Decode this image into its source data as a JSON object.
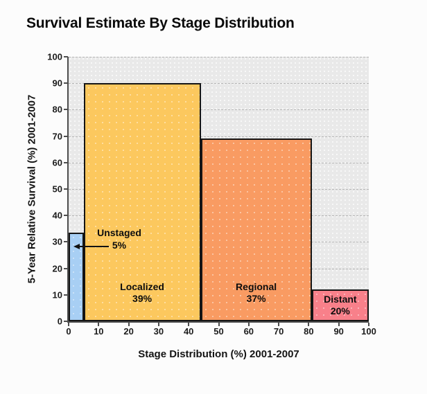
{
  "title": "Survival Estimate By Stage Distribution",
  "axes": {
    "x": {
      "label": "Stage Distribution (%) 2001-2007",
      "min": 0,
      "max": 100,
      "ticks": [
        0,
        10,
        20,
        30,
        40,
        50,
        60,
        70,
        80,
        90,
        100
      ]
    },
    "y": {
      "label": "5-Year Relative Survival (%) 2001-2007",
      "min": 0,
      "max": 100,
      "ticks": [
        0,
        10,
        20,
        30,
        40,
        50,
        60,
        70,
        80,
        90,
        100
      ]
    }
  },
  "chart_data": {
    "type": "bar",
    "variant": "variable-width",
    "title": "Survival Estimate By Stage Distribution",
    "xlabel": "Stage Distribution (%) 2001-2007",
    "ylabel": "5-Year Relative Survival (%) 2001-2007",
    "xlim": [
      0,
      100
    ],
    "ylim": [
      0,
      100
    ],
    "grid": "horizontal-dashed",
    "bars": [
      {
        "name": "Unstaged",
        "distribution_pct": 5,
        "x_start": 0,
        "x_end": 5,
        "survival_pct": 33.5,
        "color": "#A8CFF4",
        "label": "Unstaged",
        "label_value": "5%",
        "label_style": "external-arrow"
      },
      {
        "name": "Localized",
        "distribution_pct": 39,
        "x_start": 5,
        "x_end": 44,
        "survival_pct": 90,
        "color": "#FCC85E",
        "label": "Localized",
        "label_value": "39%",
        "label_style": "inside-bottom"
      },
      {
        "name": "Regional",
        "distribution_pct": 37,
        "x_start": 44,
        "x_end": 81,
        "survival_pct": 69,
        "color": "#F99B62",
        "label": "Regional",
        "label_value": "37%",
        "label_style": "inside-bottom"
      },
      {
        "name": "Distant",
        "distribution_pct": 20,
        "x_start": 81,
        "x_end": 100,
        "survival_pct": 12,
        "color": "#F8808A",
        "label": "Distant",
        "label_value": "20%",
        "label_style": "inside-bottom"
      }
    ],
    "annotation": {
      "label": "Unstaged",
      "value": "5%",
      "target": "Unstaged"
    }
  },
  "colors": {
    "plot_background": "#e9e9e9",
    "gridline": "#b5b5b5",
    "axis": "#4d4d4d",
    "bar_border": "#141414",
    "unstaged": "#A8CFF4",
    "localized": "#FCC85E",
    "regional": "#F99B62",
    "distant": "#F8808A"
  }
}
